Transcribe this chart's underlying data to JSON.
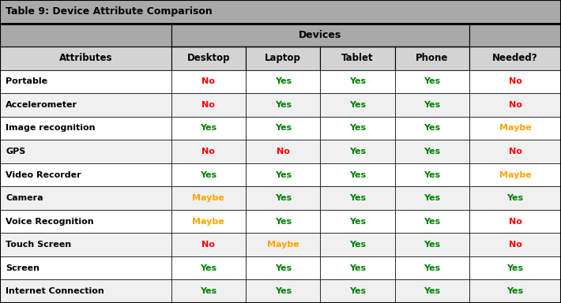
{
  "title": "Table 9: Device Attribute Comparison",
  "header_group": "Devices",
  "col_headers": [
    "Attributes",
    "Desktop",
    "Laptop",
    "Tablet",
    "Phone",
    "Needed?"
  ],
  "rows": [
    [
      "Portable",
      "No",
      "Yes",
      "Yes",
      "Yes",
      "No"
    ],
    [
      "Accelerometer",
      "No",
      "Yes",
      "Yes",
      "Yes",
      "No"
    ],
    [
      "Image recognition",
      "Yes",
      "Yes",
      "Yes",
      "Yes",
      "Maybe"
    ],
    [
      "GPS",
      "No",
      "No",
      "Yes",
      "Yes",
      "No"
    ],
    [
      "Video Recorder",
      "Yes",
      "Yes",
      "Yes",
      "Yes",
      "Maybe"
    ],
    [
      "Camera",
      "Maybe",
      "Yes",
      "Yes",
      "Yes",
      "Yes"
    ],
    [
      "Voice Recognition",
      "Maybe",
      "Yes",
      "Yes",
      "Yes",
      "No"
    ],
    [
      "Touch Screen",
      "No",
      "Maybe",
      "Yes",
      "Yes",
      "No"
    ],
    [
      "Screen",
      "Yes",
      "Yes",
      "Yes",
      "Yes",
      "Yes"
    ],
    [
      "Internet Connection",
      "Yes",
      "Yes",
      "Yes",
      "Yes",
      "Yes"
    ]
  ],
  "colors": {
    "Yes": "#008000",
    "No": "#ff0000",
    "Maybe": "#ffa500"
  },
  "title_bg": "#a9a9a9",
  "header_bg": "#a9a9a9",
  "subheader_bg": "#d3d3d3",
  "row_bg_odd": "#ffffff",
  "row_bg_even": "#f0f0f0",
  "border_color": "#000000",
  "title_color": "#000000",
  "header_color": "#000000",
  "cw": [
    0.305,
    0.133,
    0.133,
    0.133,
    0.133,
    0.163
  ]
}
